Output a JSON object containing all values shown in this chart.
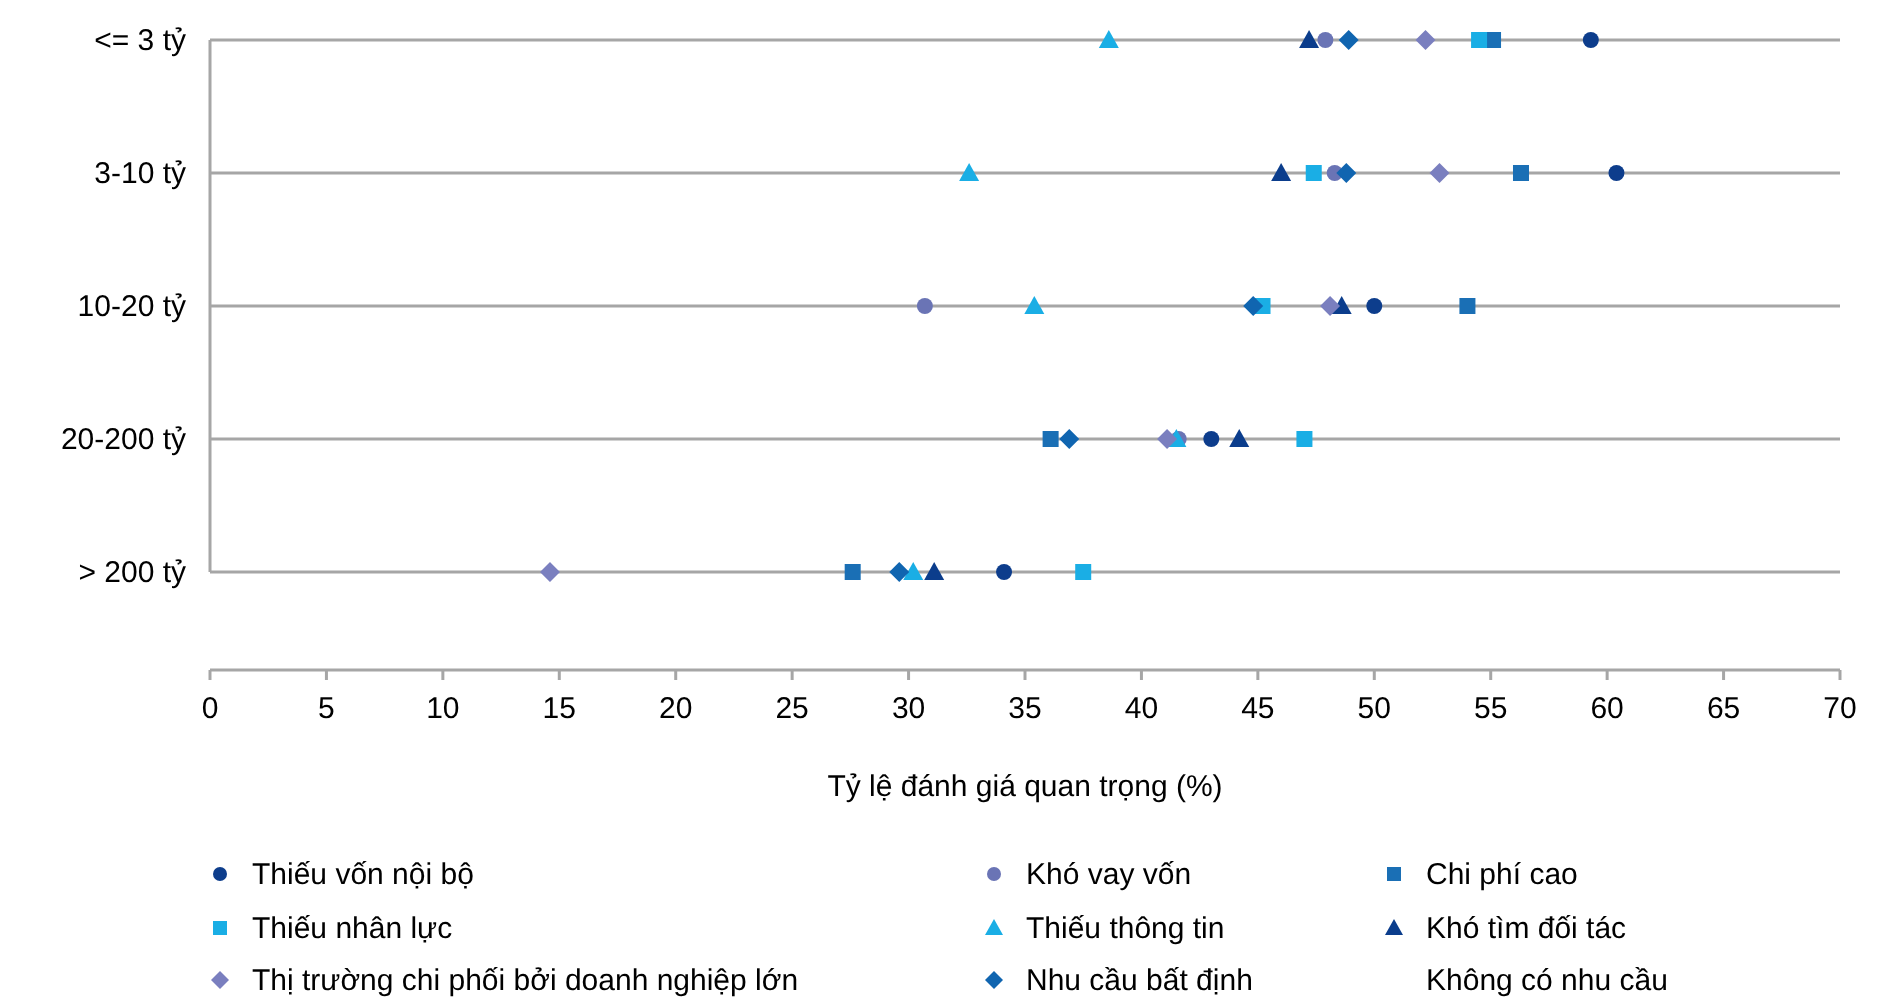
{
  "chart_data": {
    "type": "scatter",
    "orientation": "horizontal",
    "categories": [
      "<= 3 tỷ",
      "3-10 tỷ",
      "10-20 tỷ",
      "20-200 tỷ",
      "> 200 tỷ"
    ],
    "xlabel": "Tỷ lệ đánh giá quan trọng (%)",
    "xlim": [
      0,
      70
    ],
    "xticks": [
      0,
      5,
      10,
      15,
      20,
      25,
      30,
      35,
      40,
      45,
      50,
      55,
      60,
      65,
      70
    ],
    "grid": "y",
    "legend": "bottom",
    "series": [
      {
        "name": "Thiếu vốn nội bộ",
        "color": "#0d3d8c",
        "marker": "circle",
        "values": [
          59.3,
          60.4,
          50.0,
          43.0,
          34.1
        ]
      },
      {
        "name": "Khó vay vốn",
        "color": "#6a74b5",
        "marker": "circle",
        "values": [
          47.9,
          48.3,
          30.7,
          41.6,
          null
        ]
      },
      {
        "name": "Chi phí cao",
        "color": "#1a6fb5",
        "marker": "square",
        "values": [
          55.1,
          56.3,
          54.0,
          36.1,
          27.6
        ]
      },
      {
        "name": "Thiếu nhân lực",
        "color": "#1aaee5",
        "marker": "square",
        "values": [
          54.5,
          47.4,
          45.2,
          47.0,
          37.5
        ]
      },
      {
        "name": "Thiếu thông tin",
        "color": "#1aaee5",
        "marker": "triangle",
        "values": [
          38.6,
          32.6,
          35.4,
          41.5,
          30.2
        ]
      },
      {
        "name": "Khó tìm đối tác",
        "color": "#0b3d8c",
        "marker": "triangle",
        "values": [
          47.2,
          46.0,
          48.6,
          44.2,
          31.1
        ]
      },
      {
        "name": "Thị trường chi phối bởi doanh nghiệp lớn",
        "color": "#7a7fbf",
        "marker": "diamond",
        "values": [
          52.2,
          52.8,
          48.1,
          41.1,
          14.6
        ]
      },
      {
        "name": "Nhu cầu bất định",
        "color": "#1065b0",
        "marker": "diamond",
        "values": [
          48.9,
          48.8,
          44.8,
          36.9,
          29.6
        ]
      },
      {
        "name": "Không có nhu cầu",
        "marker": "none",
        "values": [
          null,
          null,
          null,
          null,
          null
        ]
      }
    ]
  }
}
